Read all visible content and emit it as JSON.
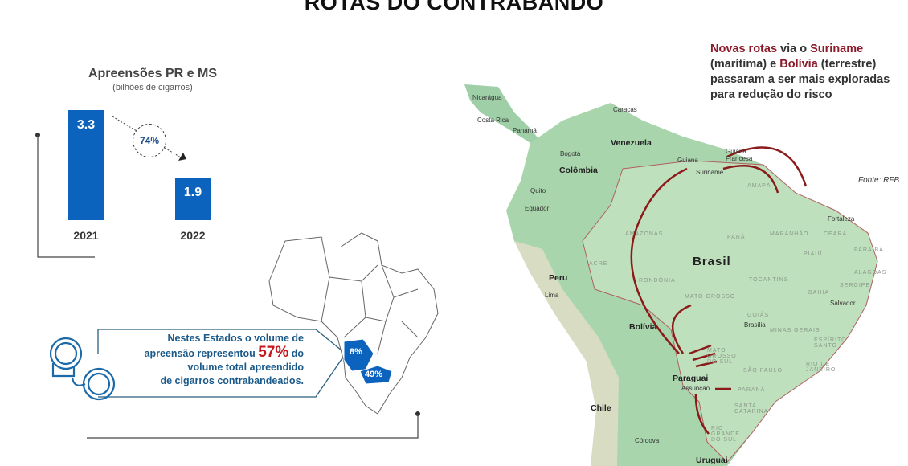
{
  "title": "ROTAS DO CONTRABANDO",
  "chart_data": {
    "type": "bar",
    "title": "Apreensões PR e MS",
    "subtitle": "(bilhões de cigarros)",
    "categories": [
      "2021",
      "2022"
    ],
    "values": [
      3.3,
      1.9
    ],
    "value_labels": [
      "3.3",
      "1.9"
    ],
    "change_label": "74%",
    "bar_color": "#0b63bd"
  },
  "callout": {
    "line1": "Nestes Estados o volume de",
    "line2_a": "apreensão representou ",
    "line2_highlight": "57%",
    "line2_b": " do",
    "line3": "volume total apreendido",
    "line4": "de cigarros contrabandeados.",
    "highlight_color": "#c4161c",
    "icon": "handcuffs-icon"
  },
  "brazil_mini_map": {
    "state_labels": [
      "8%",
      "49%"
    ],
    "fill_color": "#0b63bd"
  },
  "note": {
    "a": "Novas rotas",
    "b": " via o ",
    "c": "Suriname",
    "d": " (marítima) e ",
    "e": "Bolívia",
    "f": " (terrestre) passaram a ser mais exploradas para redução do risco"
  },
  "source": "Fonte: RFB",
  "map": {
    "labels": [
      "Nicarágua",
      "Costa Rica",
      "Panamá",
      "Caracas",
      "Venezuela",
      "Bogotá",
      "Colômbia",
      "Quito",
      "Equador",
      "Guiana",
      "Suriname",
      "Guiana Francesa",
      "Peru",
      "Lima",
      "Bolívia",
      "Brasil",
      "Paraguai",
      "Assunção",
      "Chile",
      "Córdova",
      "Uruguai",
      "Fortaleza",
      "Brasília",
      "Salvador"
    ],
    "states": [
      "AMAPÁ",
      "AMAZONAS",
      "PARÁ",
      "MARANHÃO",
      "CEARÁ",
      "PIAUÍ",
      "PARAÍBA",
      "ALAGOAS",
      "SERGIPE",
      "ACRE",
      "RONDÔNIA",
      "TOCANTINS",
      "BAHIA",
      "MATO GROSSO",
      "GOIÁS",
      "MINAS GERAIS",
      "ESPÍRITO SANTO",
      "MATO GROSSO DO SUL",
      "SÃO PAULO",
      "RIO DE JANEIRO",
      "PARANÁ",
      "SANTA CATARINA",
      "RIO GRANDE DO SUL"
    ],
    "route_color": "#8b1a1a"
  }
}
